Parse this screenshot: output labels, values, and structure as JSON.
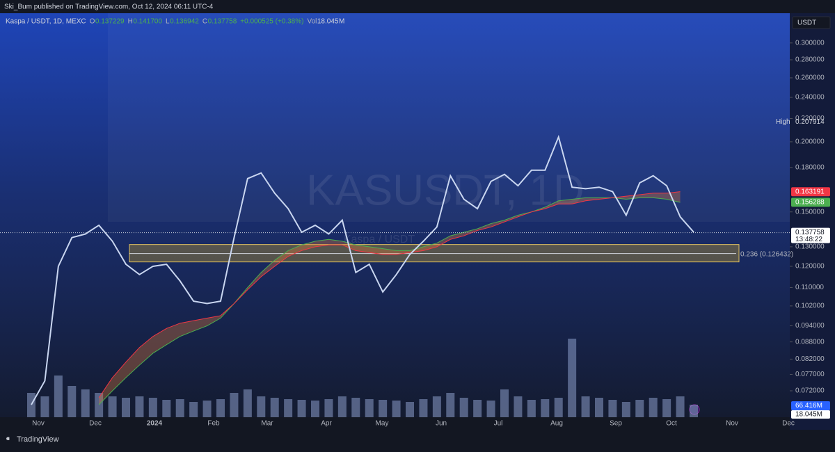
{
  "header": {
    "publisher": "Ski_Bum published on TradingView.com, Oct 12, 2024 06:11 UTC-4"
  },
  "legend": {
    "symbol": "Kaspa / USDT, 1D, MEXC",
    "o_label": "O",
    "o": "0.137229",
    "h_label": "H",
    "h": "0.141700",
    "l_label": "L",
    "l": "0.136942",
    "c_label": "C",
    "c": "0.137758",
    "change": "+0.000525 (+0.38%)",
    "vol_label": "Vol",
    "vol": "18.045",
    "vol_unit": "M"
  },
  "watermark": {
    "main": "KASUSDT, 1D",
    "sub": "Kaspa / USDT"
  },
  "currency_button": "USDT",
  "chart_data": {
    "type": "line",
    "log_scale": true,
    "ylim": [
      0.0646,
      0.338
    ],
    "yticks": [
      {
        "value": 0.3,
        "label": "0.300000"
      },
      {
        "value": 0.28,
        "label": "0.280000"
      },
      {
        "value": 0.26,
        "label": "0.260000"
      },
      {
        "value": 0.24,
        "label": "0.240000"
      },
      {
        "value": 0.22,
        "label": "0.220000"
      },
      {
        "value": 0.2,
        "label": "0.200000"
      },
      {
        "value": 0.18,
        "label": "0.180000"
      },
      {
        "value": 0.15,
        "label": "0.150000"
      },
      {
        "value": 0.13,
        "label": "0.130000"
      },
      {
        "value": 0.12,
        "label": "0.120000"
      },
      {
        "value": 0.11,
        "label": "0.110000"
      },
      {
        "value": 0.102,
        "label": "0.102000"
      },
      {
        "value": 0.094,
        "label": "0.094000"
      },
      {
        "value": 0.088,
        "label": "0.088000"
      },
      {
        "value": 0.082,
        "label": "0.082000"
      },
      {
        "value": 0.077,
        "label": "0.077000"
      },
      {
        "value": 0.072,
        "label": "0.072000"
      }
    ],
    "time_labels": [
      "Nov",
      "Dec",
      "2024",
      "Feb",
      "Mar",
      "Apr",
      "May",
      "Jun",
      "Jul",
      "Aug",
      "Sep",
      "Oct",
      "Nov",
      "Dec"
    ],
    "price": {
      "color": "#c9d6f0",
      "values": [
        0.068,
        0.075,
        0.12,
        0.135,
        0.137,
        0.142,
        0.133,
        0.121,
        0.116,
        0.12,
        0.121,
        0.113,
        0.104,
        0.103,
        0.104,
        0.135,
        0.172,
        0.176,
        0.162,
        0.152,
        0.138,
        0.142,
        0.137,
        0.145,
        0.117,
        0.121,
        0.108,
        0.116,
        0.126,
        0.133,
        0.141,
        0.174,
        0.158,
        0.152,
        0.17,
        0.175,
        0.167,
        0.178,
        0.178,
        0.204,
        0.166,
        0.165,
        0.166,
        0.163,
        0.148,
        0.169,
        0.174,
        0.167,
        0.147,
        0.138
      ]
    },
    "band": [
      {
        "color": "#4caf50",
        "values": [
          null,
          null,
          null,
          null,
          null,
          0.068,
          0.072,
          0.076,
          0.08,
          0.084,
          0.087,
          0.09,
          0.092,
          0.094,
          0.097,
          0.103,
          0.11,
          0.117,
          0.123,
          0.128,
          0.131,
          0.133,
          0.134,
          0.133,
          0.131,
          0.13,
          0.129,
          0.128,
          0.128,
          0.13,
          0.132,
          0.136,
          0.138,
          0.14,
          0.143,
          0.145,
          0.148,
          0.15,
          0.153,
          0.157,
          0.158,
          0.159,
          0.159,
          0.159,
          0.158,
          0.159,
          0.159,
          0.158,
          0.156,
          null
        ]
      },
      {
        "color": "#f23645",
        "values": [
          null,
          null,
          null,
          null,
          null,
          0.07,
          0.076,
          0.081,
          0.086,
          0.09,
          0.093,
          0.095,
          0.096,
          0.097,
          0.098,
          0.103,
          0.109,
          0.115,
          0.12,
          0.125,
          0.128,
          0.13,
          0.131,
          0.131,
          0.128,
          0.127,
          0.126,
          0.126,
          0.127,
          0.128,
          0.13,
          0.134,
          0.136,
          0.139,
          0.141,
          0.144,
          0.147,
          0.15,
          0.152,
          0.155,
          0.155,
          0.157,
          0.158,
          0.159,
          0.16,
          0.161,
          0.162,
          0.162,
          0.163,
          null
        ]
      }
    ],
    "volume": {
      "color": "#8a9cc8",
      "values": [
        35,
        30,
        60,
        45,
        40,
        35,
        30,
        28,
        30,
        28,
        25,
        26,
        22,
        24,
        26,
        35,
        40,
        30,
        28,
        26,
        25,
        24,
        26,
        30,
        28,
        26,
        25,
        24,
        22,
        26,
        30,
        35,
        28,
        25,
        24,
        40,
        30,
        25,
        26,
        28,
        113,
        30,
        28,
        25,
        22,
        25,
        28,
        26,
        30,
        18.045
      ]
    },
    "high": {
      "label": "High",
      "value": 0.207914
    },
    "last_price": {
      "value": 0.137758,
      "countdown": "13:48:22"
    },
    "ema_red": 0.163191,
    "ema_green": 0.156288,
    "fib": {
      "value": 0.126432,
      "label": "0.236 (0.126432)"
    },
    "vol_ma_label": "66.416M",
    "vol_label": "18.045M"
  },
  "footer": {
    "brand": "TradingView"
  }
}
